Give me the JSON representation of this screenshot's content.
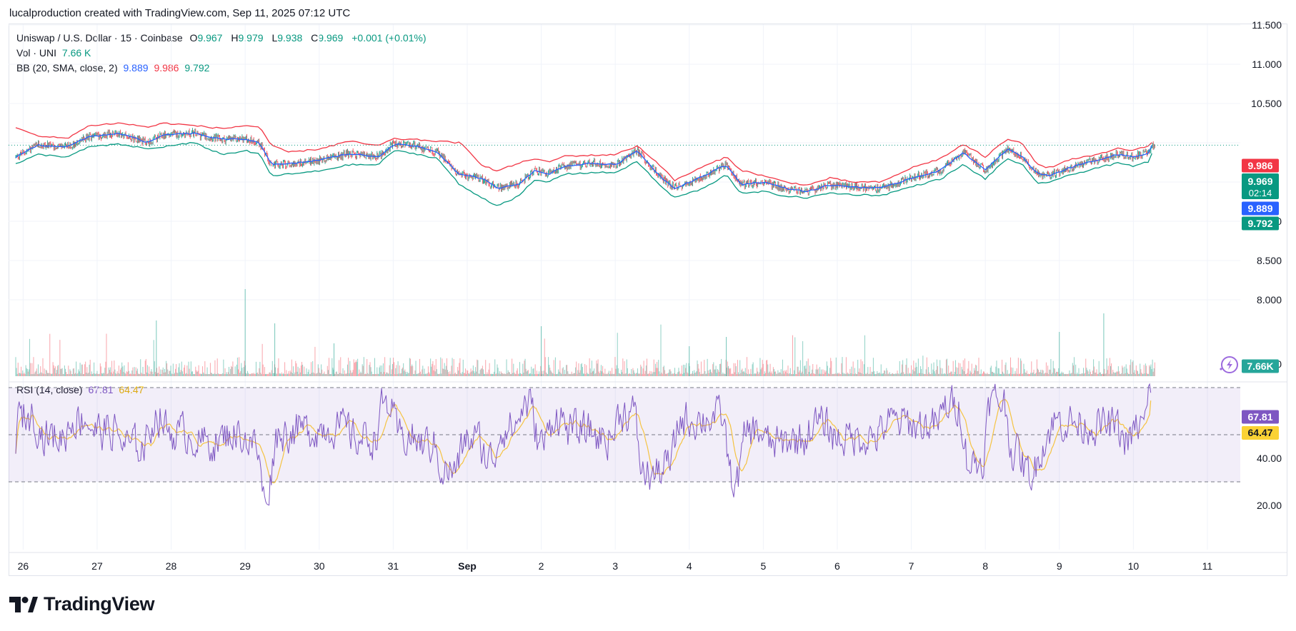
{
  "header": {
    "attribution": "lucalproduction created with TradingView.com, Sep 11, 2025 07:12 UTC"
  },
  "legend": {
    "symbol": "Uniswap / U.S. Dollar · 15 · Coinbase",
    "ohlc": {
      "o_label": "O",
      "o": "9.967",
      "h_label": "H",
      "h": "9.979",
      "l_label": "L",
      "l": "9.938",
      "c_label": "C",
      "c": "9.969",
      "change": "+0.001 (+0.01%)"
    },
    "volume": {
      "label": "Vol · UNI",
      "value": "7.66 K"
    },
    "bb": {
      "label": "BB (20, SMA, close, 2)",
      "basis": "9.889",
      "upper": "9.986",
      "lower": "9.792"
    },
    "rsi": {
      "label": "RSI (14, close)",
      "rsi": "67.81",
      "sma": "64.47"
    }
  },
  "price_badges": {
    "upper": "9.986",
    "last": "9.969",
    "countdown": "02:14",
    "basis": "9.889",
    "lower": "9.792",
    "volume": "7.66K"
  },
  "rsi_badges": {
    "rsi": "67.81",
    "sma": "64.47"
  },
  "footer": {
    "brand": "TradingView"
  },
  "colors": {
    "upper": "#f23645",
    "basis": "#2962ff",
    "lower": "#089981",
    "rsi": "#7e57c2",
    "rsi_ma": "#f5c342",
    "up": "#089981",
    "down": "#f23645"
  },
  "chart_data": [
    {
      "type": "candlestick",
      "title": "Uniswap / U.S. Dollar · 15 · Coinbase",
      "x_ticks": [
        "26",
        "27",
        "28",
        "29",
        "30",
        "31",
        "Sep",
        "2",
        "3",
        "4",
        "5",
        "6",
        "7",
        "8",
        "9",
        "10",
        "11"
      ],
      "y_ticks": [
        "11.500",
        "11.000",
        "10.500",
        "9.000",
        "8.500",
        "8.000"
      ],
      "ylim": [
        7.5,
        11.9
      ],
      "bollinger_anchor_points": {
        "days": [
          25.9,
          26.2,
          26.6,
          26.9,
          27.3,
          27.7,
          27.9,
          28.3,
          28.7,
          29.0,
          29.2,
          29.35,
          29.6,
          30.0,
          30.4,
          30.8,
          31.0,
          31.3,
          31.6,
          31.9,
          32.2,
          32.4,
          32.7,
          32.9,
          33.1,
          33.3,
          33.7,
          34.0,
          34.3,
          34.6,
          34.8,
          35.2,
          35.5,
          35.7,
          36.0,
          36.3,
          36.6,
          36.9,
          37.2,
          37.6,
          38.0,
          38.4,
          38.7,
          39.0,
          39.3,
          39.5,
          39.7,
          39.85,
          40.2,
          40.5,
          40.8,
          41.0,
          41.2,
          41.25
        ],
        "basis": [
          9.82,
          9.97,
          9.95,
          10.08,
          10.12,
          10.0,
          10.1,
          10.12,
          10.04,
          10.05,
          10.0,
          9.72,
          9.73,
          9.78,
          9.86,
          9.82,
          9.98,
          9.96,
          9.88,
          9.59,
          9.55,
          9.42,
          9.48,
          9.64,
          9.6,
          9.7,
          9.74,
          9.72,
          9.9,
          9.58,
          9.42,
          9.58,
          9.72,
          9.47,
          9.5,
          9.42,
          9.38,
          9.46,
          9.44,
          9.42,
          9.55,
          9.65,
          9.88,
          9.65,
          9.92,
          9.82,
          9.61,
          9.58,
          9.7,
          9.78,
          9.85,
          9.82,
          9.87,
          9.97
        ],
        "upper": [
          10.2,
          10.08,
          10.06,
          10.22,
          10.25,
          10.2,
          10.25,
          10.22,
          10.18,
          10.22,
          10.2,
          9.96,
          9.88,
          9.92,
          10.02,
          9.96,
          10.05,
          10.04,
          10.02,
          10.0,
          9.72,
          9.64,
          9.74,
          9.8,
          9.75,
          9.83,
          9.84,
          9.85,
          9.96,
          9.72,
          9.52,
          9.7,
          9.82,
          9.65,
          9.58,
          9.5,
          9.46,
          9.55,
          9.5,
          9.5,
          9.68,
          9.8,
          9.98,
          9.82,
          10.05,
          10.0,
          9.72,
          9.68,
          9.8,
          9.84,
          9.93,
          9.9,
          9.96,
          10.0
        ],
        "lower": [
          9.73,
          9.85,
          9.82,
          9.95,
          9.98,
          9.92,
          9.95,
          10.0,
          9.85,
          9.9,
          9.85,
          9.58,
          9.6,
          9.64,
          9.72,
          9.72,
          9.9,
          9.86,
          9.8,
          9.46,
          9.3,
          9.2,
          9.32,
          9.52,
          9.5,
          9.6,
          9.62,
          9.62,
          9.76,
          9.46,
          9.3,
          9.42,
          9.6,
          9.35,
          9.38,
          9.32,
          9.3,
          9.36,
          9.34,
          9.33,
          9.44,
          9.54,
          9.72,
          9.54,
          9.8,
          9.72,
          9.48,
          9.5,
          9.6,
          9.68,
          9.74,
          9.7,
          9.76,
          9.87
        ]
      },
      "last": {
        "close": 9.969,
        "bb_upper": 9.986,
        "bb_basis": 9.889,
        "bb_lower": 9.792,
        "volume": "7.66K"
      }
    },
    {
      "type": "line",
      "title": "RSI (14, close)",
      "y_ticks": [
        "80.00",
        "40.00",
        "20.00"
      ],
      "ylim": [
        15,
        85
      ],
      "bands": [
        30,
        50,
        70
      ],
      "series": [
        {
          "name": "RSI",
          "last": 67.81
        },
        {
          "name": "RSI-based MA",
          "last": 64.47
        }
      ]
    }
  ]
}
